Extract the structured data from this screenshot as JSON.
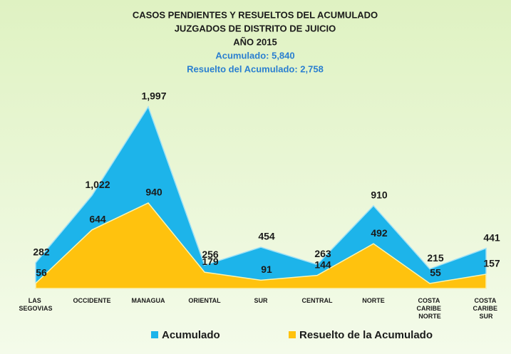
{
  "chart_data": {
    "type": "area",
    "title": [
      "CASOS PENDIENTES Y RESUELTOS DEL ACUMULADO",
      "JUZGADOS DE DISTRITO DE JUICIO",
      "AÑO 2015"
    ],
    "subtitle": [
      "Acumulado: 5,840",
      "Resuelto del Acumulado: 2,758"
    ],
    "categories": [
      "LAS SEGOVIAS",
      "OCCIDENTE",
      "MANAGUA",
      "ORIENTAL",
      "SUR",
      "CENTRAL",
      "NORTE",
      "COSTA CARIBE NORTE",
      "COSTA CARIBE SUR"
    ],
    "series": [
      {
        "name": "Acumulado",
        "color": "#1db4ea",
        "values": [
          282,
          1022,
          1997,
          256,
          454,
          263,
          910,
          215,
          441
        ],
        "value_labels": [
          "282",
          "1,022",
          "1,997",
          "256",
          "454",
          "263",
          "910",
          "215",
          "441"
        ]
      },
      {
        "name": "Resuelto de la Acumulado",
        "color": "#ffc20e",
        "values": [
          56,
          644,
          940,
          179,
          91,
          144,
          492,
          55,
          157
        ],
        "value_labels": [
          "56",
          "644",
          "940",
          "179",
          "91",
          "144",
          "492",
          "55",
          "157"
        ]
      }
    ],
    "legend": "bottom"
  }
}
